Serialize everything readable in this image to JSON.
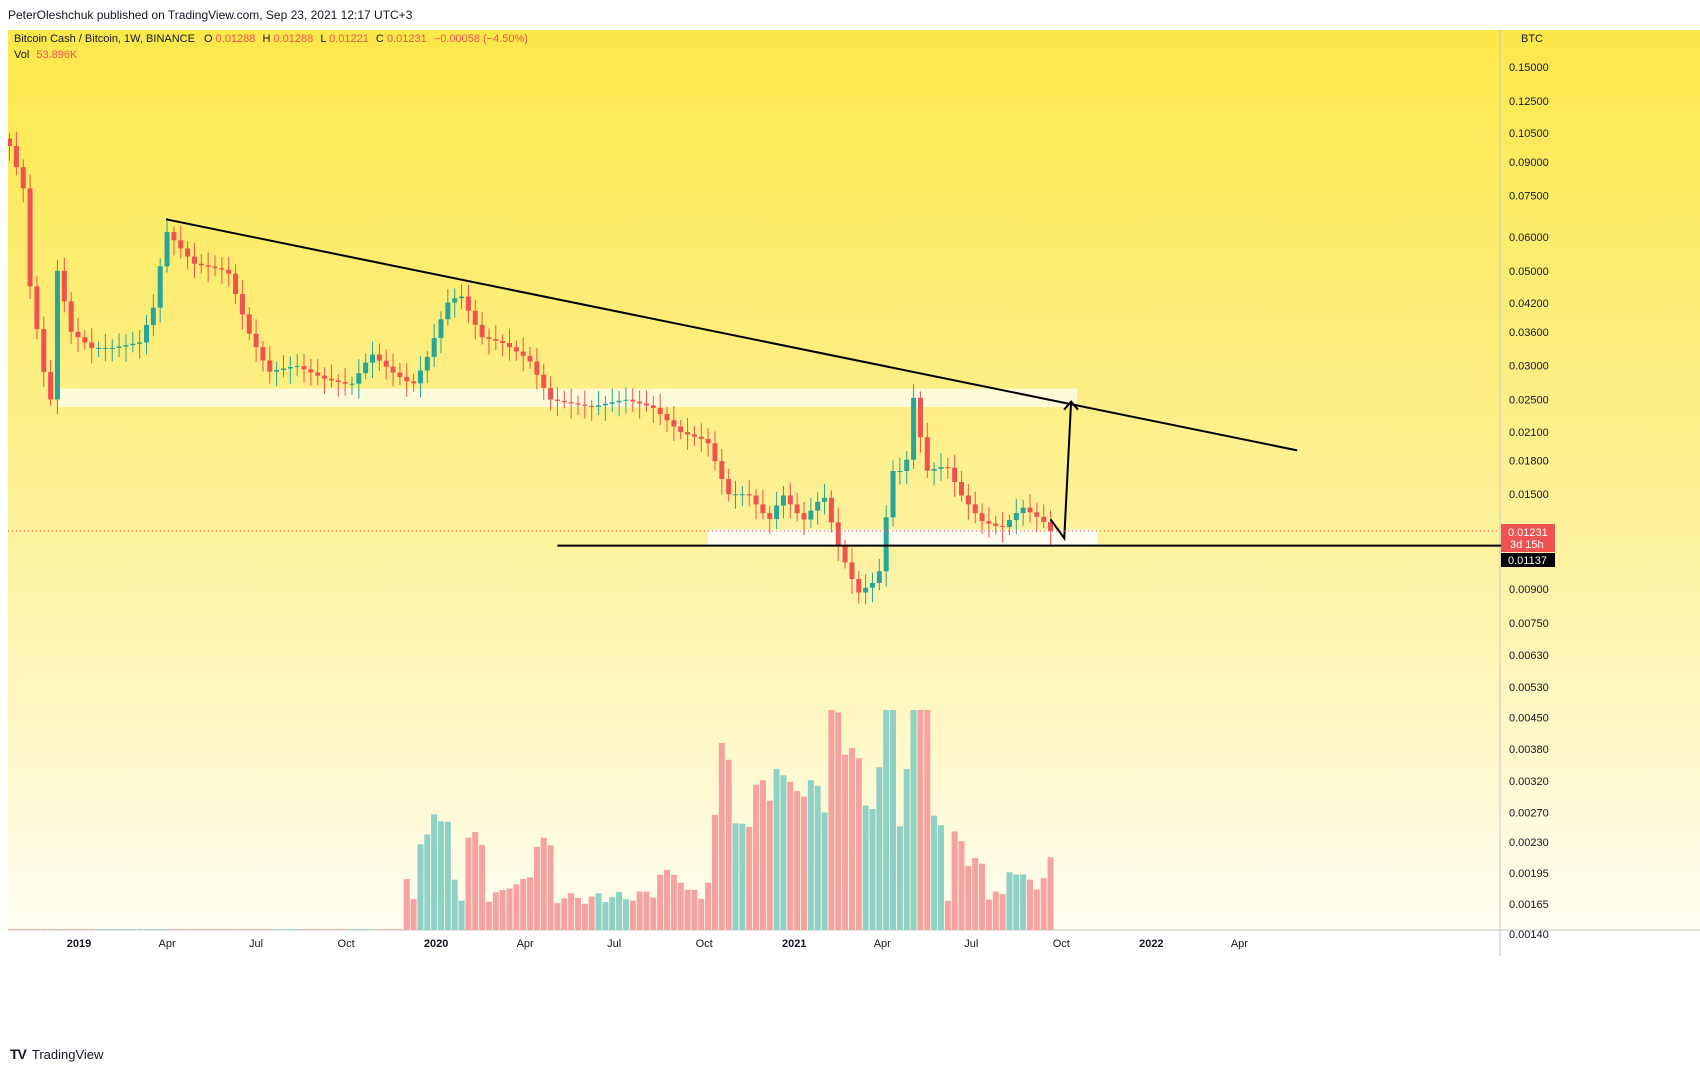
{
  "header": {
    "publisher": "PeterOleshchuk published on TradingView.com, Sep 23, 2021 12:17 UTC+3"
  },
  "legend": {
    "symbol": "Bitcoin Cash / Bitcoin, 1W, BINANCE",
    "o_label": "O",
    "o_value": "0.01288",
    "h_label": "H",
    "h_value": "0.01288",
    "l_label": "L",
    "l_value": "0.01221",
    "c_label": "C",
    "c_value": "0.01231",
    "change": "−0.00058 (−4.50%)",
    "vol_label": "Vol",
    "vol_value": "53.896K"
  },
  "price_axis": {
    "unit": "BTC",
    "ticks": [
      "0.15000",
      "0.12500",
      "0.10500",
      "0.09000",
      "0.07500",
      "0.06000",
      "0.05000",
      "0.04200",
      "0.03600",
      "0.03000",
      "0.02500",
      "0.02100",
      "0.01800",
      "0.01500",
      "0.00900",
      "0.00750",
      "0.00630",
      "0.00530",
      "0.00450",
      "0.00380",
      "0.00320",
      "0.00270",
      "0.00230",
      "0.00195",
      "0.00165",
      "0.00140"
    ],
    "last_price": "0.01231",
    "countdown": "3d 15h",
    "support_level": "0.01137"
  },
  "time_axis": {
    "labels": [
      "2019",
      "Apr",
      "Jul",
      "Oct",
      "2020",
      "Apr",
      "Jul",
      "Oct",
      "2021",
      "Apr",
      "Jul",
      "Oct",
      "2022",
      "Apr"
    ]
  },
  "branding": {
    "logo_text": "TradingView"
  },
  "colors": {
    "bull": "#26a69a",
    "bear": "#ef5350",
    "bull_volume": "#8fd1c4",
    "bear_volume": "#f4a3a0",
    "bg_top": "#fde84a",
    "bg_bottom": "#fffef2"
  },
  "chart_data": {
    "type": "candlestick",
    "symbol": "BCHBTC",
    "timeframe": "1W",
    "scale": "log",
    "x_range": [
      "2018-10-22",
      "2022-06-06"
    ],
    "y_range": [
      0.0085,
      0.18
    ],
    "candles_weekly_approx": [
      {
        "week": "2018-10-29",
        "o": 0.09,
        "h": 0.092,
        "c": 0.085,
        "l": 0.083
      },
      {
        "week": "2018-11-05",
        "o": 0.085,
        "h": 0.086,
        "c": 0.075,
        "l": 0.073
      },
      {
        "week": "2018-11-12",
        "o": 0.075,
        "h": 0.076,
        "c": 0.045,
        "l": 0.043
      },
      {
        "week": "2018-11-19",
        "o": 0.045,
        "h": 0.052,
        "c": 0.04,
        "l": 0.038
      },
      {
        "week": "2018-11-26",
        "o": 0.04,
        "h": 0.042,
        "c": 0.028,
        "l": 0.027
      },
      {
        "week": "2018-12-03",
        "o": 0.028,
        "h": 0.029,
        "c": 0.025,
        "l": 0.024
      },
      {
        "week": "2018-12-10",
        "o": 0.025,
        "h": 0.054,
        "c": 0.05,
        "l": 0.025
      },
      {
        "week": "2018-12-17",
        "o": 0.05,
        "h": 0.054,
        "c": 0.041,
        "l": 0.04
      },
      {
        "week": "2018-12-24",
        "o": 0.041,
        "h": 0.044,
        "c": 0.035,
        "l": 0.034
      },
      {
        "week": "2019-03-31",
        "o": 0.04,
        "h": 0.066,
        "c": 0.062,
        "l": 0.039
      },
      {
        "week": "2020-01-27",
        "o": 0.04,
        "h": 0.048,
        "c": 0.044,
        "l": 0.039
      },
      {
        "week": "2020-12-21",
        "o": 0.013,
        "h": 0.016,
        "c": 0.012,
        "l": 0.011
      },
      {
        "week": "2021-02-22",
        "o": 0.0095,
        "h": 0.0102,
        "c": 0.009,
        "l": 0.0087
      },
      {
        "week": "2021-03-08",
        "o": 0.0087,
        "h": 0.0098,
        "c": 0.0093,
        "l": 0.0085
      },
      {
        "week": "2021-04-05",
        "o": 0.012,
        "h": 0.018,
        "c": 0.017,
        "l": 0.011
      },
      {
        "week": "2021-04-26",
        "o": 0.017,
        "h": 0.029,
        "c": 0.026,
        "l": 0.016
      },
      {
        "week": "2021-05-03",
        "o": 0.026,
        "h": 0.028,
        "c": 0.024,
        "l": 0.021
      },
      {
        "week": "2021-05-10",
        "o": 0.024,
        "h": 0.025,
        "c": 0.015,
        "l": 0.014
      },
      {
        "week": "2021-09-20",
        "o": 0.01288,
        "h": 0.01288,
        "c": 0.01231,
        "l": 0.01221
      }
    ],
    "drawings": {
      "descending_trendline": [
        {
          "date": "2019-03-31",
          "price": 0.066
        },
        {
          "date": "2022-05-30",
          "price": 0.019
        }
      ],
      "support_line": {
        "from": "2020-05-04",
        "to": "2022-06-06",
        "price": 0.01137
      },
      "upper_zone": {
        "from": "2018-12-10",
        "to": "2021-10-17",
        "low": 0.024,
        "high": 0.0265
      },
      "lower_zone": {
        "from": "2020-10-05",
        "to": "2021-11-07",
        "low": 0.01137,
        "high": 0.0124
      },
      "projection_path": [
        {
          "date": "2021-09-20",
          "price": 0.0131
        },
        {
          "date": "2021-10-04",
          "price": 0.01183
        },
        {
          "date": "2021-10-11",
          "price": 0.0247
        }
      ]
    },
    "volume_relative": "shown as histogram bars in lower pane (scaled 0-1 of max)"
  }
}
